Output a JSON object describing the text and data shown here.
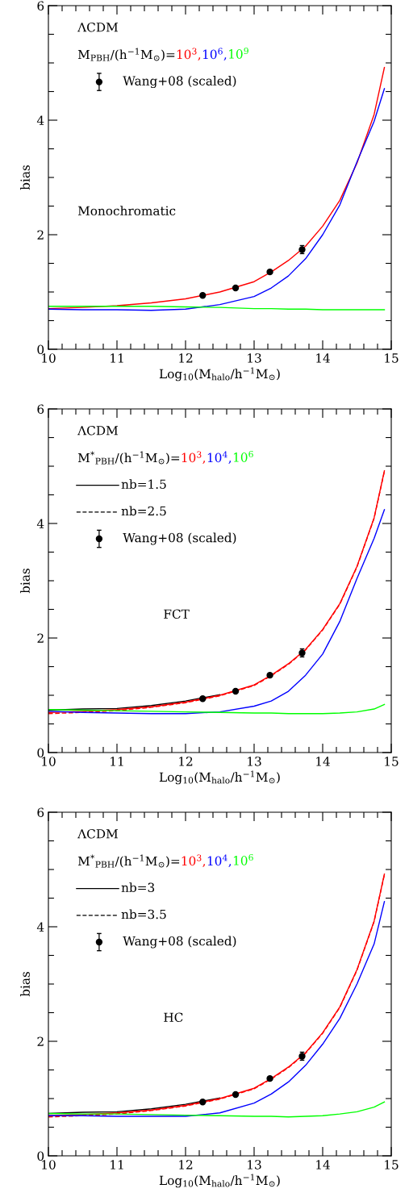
{
  "chart_data": [
    {
      "type": "line",
      "xlabel": "Log$_{10}$(M$_{halo}$/h$^{−1}$M$_{⊙}$)",
      "ylabel": "bias",
      "xlim": [
        10,
        15
      ],
      "ylim": [
        0,
        6
      ],
      "xticks": [
        10,
        {
          "value": 10.2,
          "label": null
        },
        {
          "value": 10.4,
          "label": null
        },
        {
          "value": 10.6,
          "label": null
        },
        {
          "value": 10.8,
          "label": null
        },
        11,
        {
          "value": 11.2,
          "label": null
        },
        {
          "value": 11.4,
          "label": null
        },
        {
          "value": 11.6,
          "label": null
        },
        {
          "value": 11.8,
          "label": null
        },
        12,
        {
          "value": 12.2,
          "label": null
        },
        {
          "value": 12.4,
          "label": null
        },
        {
          "value": 12.6,
          "label": null
        },
        {
          "value": 12.8,
          "label": null
        },
        13,
        {
          "value": 13.2,
          "label": null
        },
        {
          "value": 13.4,
          "label": null
        },
        {
          "value": 13.6,
          "label": null
        },
        {
          "value": 13.8,
          "label": null
        },
        14,
        {
          "value": 14.2,
          "label": null
        },
        {
          "value": 14.4,
          "label": null
        },
        {
          "value": 14.6,
          "label": null
        },
        {
          "value": 14.8,
          "label": null
        },
        15
      ],
      "yticks": [
        0,
        {
          "value": 0.5,
          "label": null
        },
        {
          "value": 1,
          "label": null
        },
        {
          "value": 1.5,
          "label": null
        },
        2,
        {
          "value": 2.5,
          "label": null
        },
        {
          "value": 3,
          "label": null
        },
        {
          "value": 3.5,
          "label": null
        },
        4,
        {
          "value": 4.5,
          "label": null
        },
        {
          "value": 5,
          "label": null
        },
        {
          "value": 5.5,
          "label": null
        },
        6
      ],
      "legend": "top left",
      "annotations": [
        "ΛCDM",
        "M$_{PBH}$/(h$^{−1}$M$_{⊙}$)=",
        "Monochromatic"
      ],
      "x": [
        10,
        10.5,
        11,
        11.5,
        12,
        12.5,
        13,
        13.25,
        13.5,
        13.75,
        14,
        14.25,
        14.5,
        14.75,
        14.9
      ],
      "series": [
        {
          "name": "10$^{3}$,",
          "color": "#ff0000",
          "line_style": "solid",
          "values": [
            0.71,
            0.73,
            0.76,
            0.81,
            0.88,
            1.0,
            1.18,
            1.35,
            1.55,
            1.8,
            2.15,
            2.6,
            3.25,
            4.1,
            4.92
          ]
        },
        {
          "name": "10$^{6}$,",
          "color": "#0000ff",
          "line_style": "solid",
          "values": [
            0.7,
            0.69,
            0.69,
            0.68,
            0.7,
            0.78,
            0.92,
            1.07,
            1.28,
            1.58,
            2.0,
            2.52,
            3.27,
            3.98,
            4.55
          ]
        },
        {
          "name": "10$^{9}$",
          "color": "#00ff00",
          "line_style": "solid",
          "values": [
            0.75,
            0.75,
            0.75,
            0.75,
            0.74,
            0.73,
            0.71,
            0.71,
            0.7,
            0.7,
            0.69,
            0.69,
            0.69,
            0.69,
            0.69
          ]
        },
        {
          "type": "scatter",
          "name": "Wang+08 (scaled)",
          "color": "#000000",
          "marker": "circle",
          "x": [
            12.25,
            12.73,
            13.23,
            13.7
          ],
          "values": [
            0.94,
            1.07,
            1.35,
            1.74
          ],
          "errors": [
            0.03,
            0.03,
            0.03,
            0.07
          ]
        }
      ]
    },
    {
      "type": "line",
      "xlabel": "Log$_{10}$(M$_{halo}$/h$^{−1}$M$_{⊙}$)",
      "ylabel": "bias",
      "xlim": [
        10,
        15
      ],
      "ylim": [
        0,
        6
      ],
      "xticks": [
        10,
        {
          "value": 10.2,
          "label": null
        },
        {
          "value": 10.4,
          "label": null
        },
        {
          "value": 10.6,
          "label": null
        },
        {
          "value": 10.8,
          "label": null
        },
        11,
        {
          "value": 11.2,
          "label": null
        },
        {
          "value": 11.4,
          "label": null
        },
        {
          "value": 11.6,
          "label": null
        },
        {
          "value": 11.8,
          "label": null
        },
        12,
        {
          "value": 12.2,
          "label": null
        },
        {
          "value": 12.4,
          "label": null
        },
        {
          "value": 12.6,
          "label": null
        },
        {
          "value": 12.8,
          "label": null
        },
        13,
        {
          "value": 13.2,
          "label": null
        },
        {
          "value": 13.4,
          "label": null
        },
        {
          "value": 13.6,
          "label": null
        },
        {
          "value": 13.8,
          "label": null
        },
        14,
        {
          "value": 14.2,
          "label": null
        },
        {
          "value": 14.4,
          "label": null
        },
        {
          "value": 14.6,
          "label": null
        },
        {
          "value": 14.8,
          "label": null
        },
        15
      ],
      "yticks": [
        0,
        {
          "value": 0.5,
          "label": null
        },
        {
          "value": 1,
          "label": null
        },
        {
          "value": 1.5,
          "label": null
        },
        2,
        {
          "value": 2.5,
          "label": null
        },
        {
          "value": 3,
          "label": null
        },
        {
          "value": 3.5,
          "label": null
        },
        4,
        {
          "value": 4.5,
          "label": null
        },
        {
          "value": 5,
          "label": null
        },
        {
          "value": 5.5,
          "label": null
        },
        6
      ],
      "legend": "top left",
      "annotations": [
        "ΛCDM",
        "M$^{*}$$_{PBH}$/(h$^{−1}$M$_{⊙}$)=",
        "nb=1.5",
        "nb=2.5",
        "FCT"
      ],
      "x": [
        10,
        10.5,
        11,
        11.5,
        12,
        12.5,
        13,
        13.25,
        13.5,
        13.75,
        14,
        14.25,
        14.5,
        14.75,
        14.9
      ],
      "series": [
        {
          "color": "#000000",
          "line_style": "solid",
          "values": [
            0.74,
            0.76,
            0.77,
            0.82,
            0.9,
            1.01,
            null,
            null,
            null,
            null,
            null,
            null,
            null,
            null,
            null
          ]
        },
        {
          "name": "10$^{3}$,",
          "color": "#ff0000",
          "line_style": "solid",
          "values": [
            0.7,
            0.72,
            0.75,
            0.8,
            0.88,
            1.0,
            1.18,
            1.35,
            1.55,
            1.8,
            2.15,
            2.6,
            3.25,
            4.1,
            4.92
          ]
        },
        {
          "color": "#ff0000",
          "line_style": "dashed",
          "values": [
            0.68,
            0.7,
            0.73,
            0.79,
            0.87,
            0.99,
            1.17,
            1.34,
            1.54,
            1.79,
            2.14,
            2.59,
            3.24,
            4.09,
            4.91
          ]
        },
        {
          "name": "10$^{4}$,",
          "color": "#0000ff",
          "line_style": "solid",
          "values": [
            0.72,
            0.7,
            0.69,
            0.68,
            0.68,
            0.71,
            0.81,
            0.9,
            1.07,
            1.35,
            1.72,
            2.29,
            3.04,
            3.74,
            4.24
          ]
        },
        {
          "name": "10$^{6}$",
          "color": "#00ff00",
          "line_style": "solid",
          "values": [
            0.75,
            0.74,
            0.73,
            0.72,
            0.71,
            0.7,
            0.69,
            0.69,
            0.68,
            0.68,
            0.68,
            0.69,
            0.71,
            0.76,
            0.84
          ]
        },
        {
          "type": "scatter",
          "name": "Wang+08 (scaled)",
          "color": "#000000",
          "marker": "circle",
          "x": [
            12.25,
            12.73,
            13.23,
            13.7
          ],
          "values": [
            0.94,
            1.07,
            1.35,
            1.74
          ],
          "errors": [
            0.03,
            0.03,
            0.03,
            0.07
          ]
        }
      ]
    },
    {
      "type": "line",
      "xlabel": "Log$_{10}$(M$_{halo}$/h$^{−1}$M$_{⊙}$)",
      "ylabel": "bias",
      "xlim": [
        10,
        15
      ],
      "ylim": [
        0,
        6
      ],
      "xticks": [
        10,
        {
          "value": 10.2,
          "label": null
        },
        {
          "value": 10.4,
          "label": null
        },
        {
          "value": 10.6,
          "label": null
        },
        {
          "value": 10.8,
          "label": null
        },
        11,
        {
          "value": 11.2,
          "label": null
        },
        {
          "value": 11.4,
          "label": null
        },
        {
          "value": 11.6,
          "label": null
        },
        {
          "value": 11.8,
          "label": null
        },
        12,
        {
          "value": 12.2,
          "label": null
        },
        {
          "value": 12.4,
          "label": null
        },
        {
          "value": 12.6,
          "label": null
        },
        {
          "value": 12.8,
          "label": null
        },
        13,
        {
          "value": 13.2,
          "label": null
        },
        {
          "value": 13.4,
          "label": null
        },
        {
          "value": 13.6,
          "label": null
        },
        {
          "value": 13.8,
          "label": null
        },
        14,
        {
          "value": 14.2,
          "label": null
        },
        {
          "value": 14.4,
          "label": null
        },
        {
          "value": 14.6,
          "label": null
        },
        {
          "value": 14.8,
          "label": null
        },
        15
      ],
      "yticks": [
        0,
        {
          "value": 0.5,
          "label": null
        },
        {
          "value": 1,
          "label": null
        },
        {
          "value": 1.5,
          "label": null
        },
        2,
        {
          "value": 2.5,
          "label": null
        },
        {
          "value": 3,
          "label": null
        },
        {
          "value": 3.5,
          "label": null
        },
        4,
        {
          "value": 4.5,
          "label": null
        },
        {
          "value": 5,
          "label": null
        },
        {
          "value": 5.5,
          "label": null
        },
        6
      ],
      "legend": "top left",
      "annotations": [
        "ΛCDM",
        "M$^{*}$$_{PBH}$/(h$^{−1}$M$_{⊙}$)=",
        "nb=3",
        "nb=3.5",
        "HC"
      ],
      "x": [
        10,
        10.5,
        11,
        11.5,
        12,
        12.5,
        13,
        13.25,
        13.5,
        13.75,
        14,
        14.25,
        14.5,
        14.75,
        14.9
      ],
      "series": [
        {
          "color": "#000000",
          "line_style": "solid",
          "values": [
            0.74,
            0.76,
            0.77,
            0.82,
            0.9,
            1.01,
            null,
            null,
            null,
            null,
            null,
            null,
            null,
            null,
            null
          ]
        },
        {
          "name": "10$^{3}$,",
          "color": "#ff0000",
          "line_style": "solid",
          "values": [
            0.7,
            0.72,
            0.75,
            0.8,
            0.88,
            1.0,
            1.18,
            1.35,
            1.55,
            1.8,
            2.15,
            2.6,
            3.25,
            4.1,
            4.92
          ]
        },
        {
          "color": "#ff0000",
          "line_style": "dashed",
          "values": [
            0.68,
            0.7,
            0.73,
            0.79,
            0.87,
            0.99,
            1.17,
            1.34,
            1.54,
            1.79,
            2.14,
            2.59,
            3.24,
            4.09,
            4.91
          ]
        },
        {
          "name": "10$^{4}$,",
          "color": "#0000ff",
          "line_style": "solid",
          "values": [
            0.7,
            0.7,
            0.69,
            0.69,
            0.69,
            0.75,
            0.92,
            1.08,
            1.29,
            1.58,
            1.95,
            2.4,
            3.0,
            3.7,
            4.44
          ]
        },
        {
          "name": "10$^{6}$",
          "color": "#00ff00",
          "line_style": "solid",
          "values": [
            0.74,
            0.73,
            0.73,
            0.72,
            0.71,
            0.7,
            0.69,
            0.69,
            0.68,
            0.69,
            0.7,
            0.73,
            0.77,
            0.85,
            0.94
          ]
        },
        {
          "type": "scatter",
          "name": "Wang+08 (scaled)",
          "color": "#000000",
          "marker": "circle",
          "x": [
            12.25,
            12.73,
            13.23,
            13.7
          ],
          "values": [
            0.94,
            1.07,
            1.35,
            1.74
          ],
          "errors": [
            0.03,
            0.03,
            0.03,
            0.07
          ]
        }
      ]
    }
  ]
}
